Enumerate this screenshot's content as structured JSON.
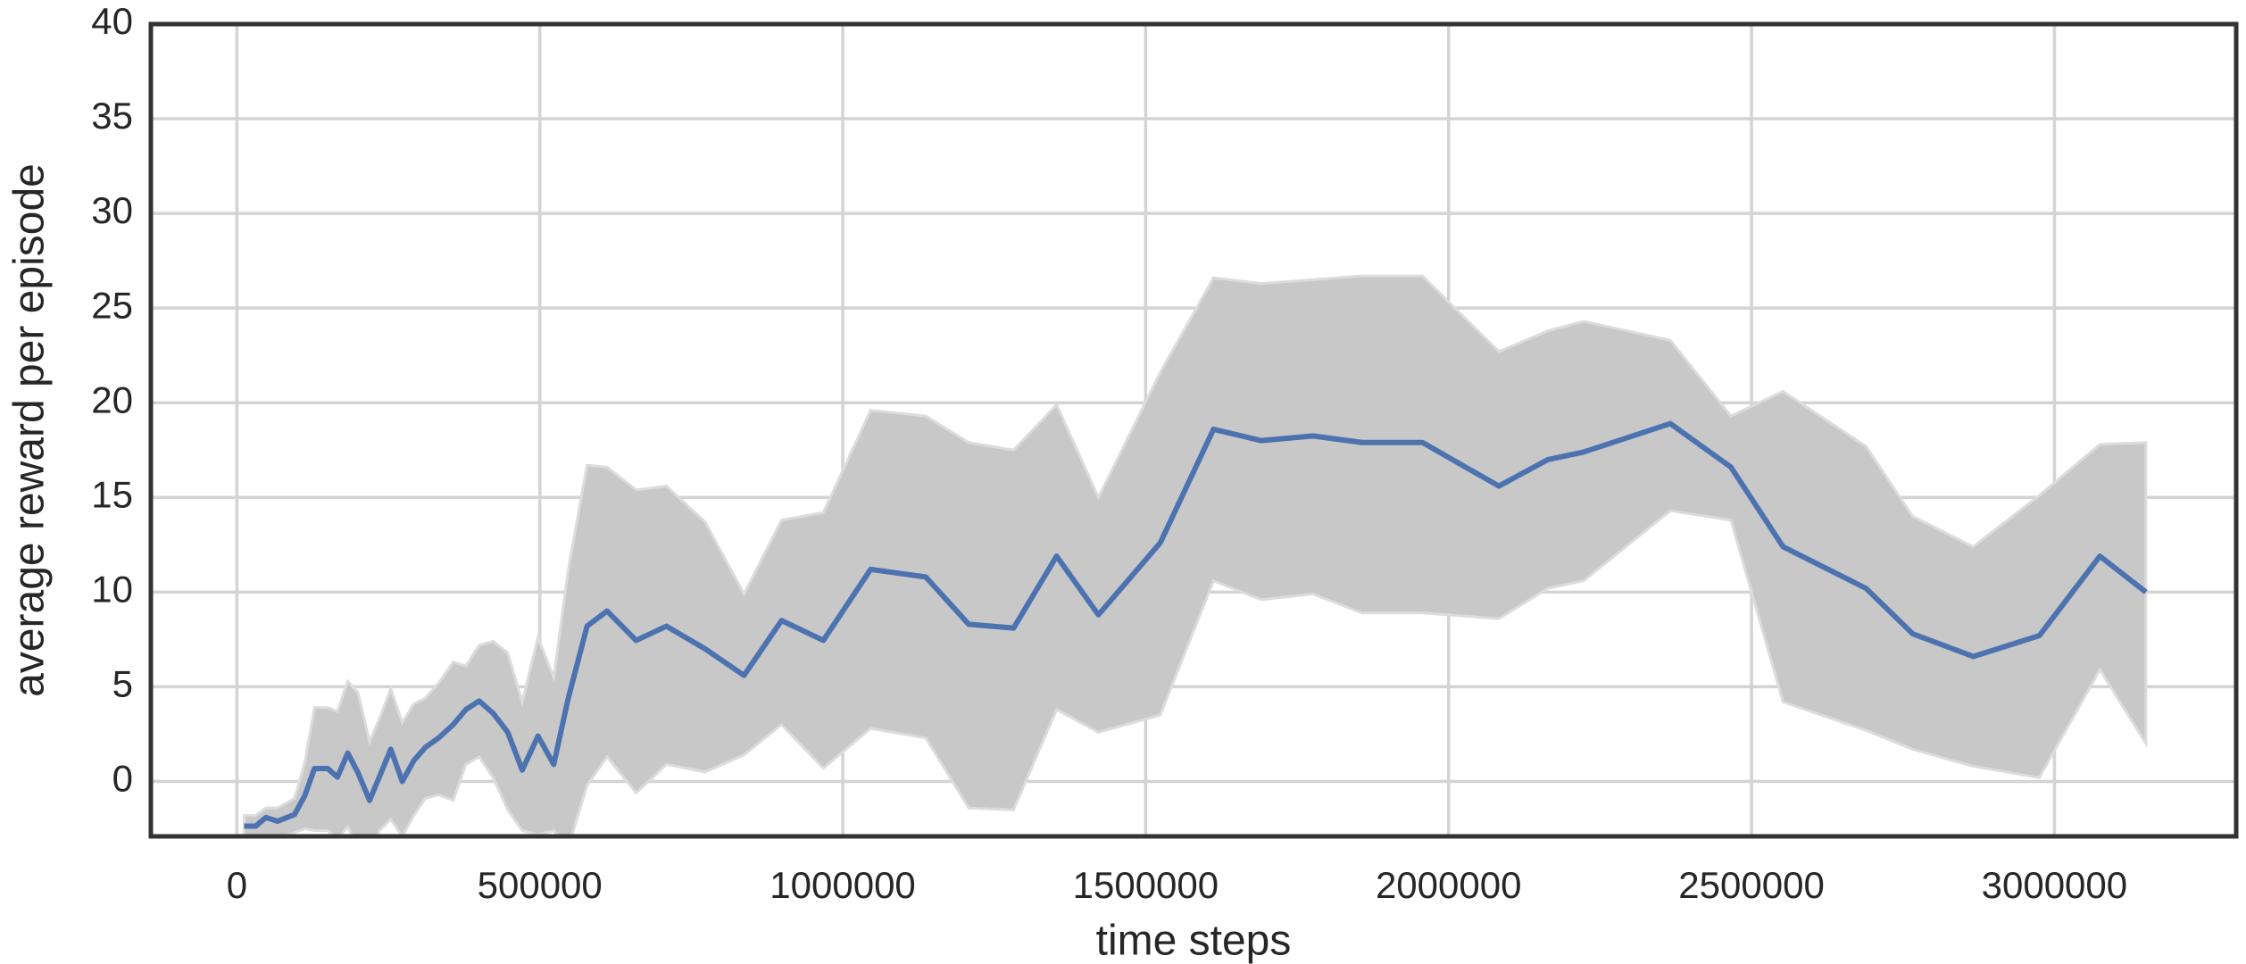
{
  "chart_data": {
    "type": "line",
    "xlabel": "time steps",
    "ylabel": "average reward per episode",
    "x": [
      12000,
      31000,
      48000,
      67000,
      95000,
      112000,
      128000,
      150000,
      166000,
      183000,
      200000,
      219000,
      235000,
      254000,
      273000,
      292000,
      311000,
      333000,
      357000,
      378000,
      400000,
      423000,
      447000,
      471000,
      497000,
      523000,
      547000,
      578000,
      611000,
      659000,
      709000,
      773000,
      837000,
      899000,
      968000,
      1046000,
      1137000,
      1208000,
      1282000,
      1353000,
      1422000,
      1524000,
      1612000,
      1691000,
      1776000,
      1857000,
      1957000,
      2083000,
      2164000,
      2223000,
      2366000,
      2466000,
      2552000,
      2689000,
      2766000,
      2866000,
      2975000,
      3075000,
      3151000
    ],
    "series": [
      {
        "color": "#4c72b0",
        "values": [
          -2.36,
          -2.36,
          -1.9,
          -2.1,
          -1.75,
          -0.76,
          0.68,
          0.68,
          0.23,
          1.5,
          0.45,
          -1.0,
          0.23,
          1.7,
          0,
          1.1,
          1.8,
          2.3,
          3.0,
          3.8,
          4.25,
          3.6,
          2.6,
          0.6,
          2.4,
          0.9,
          4.4,
          8.2,
          9.0,
          7.45,
          8.2,
          7.0,
          5.6,
          8.5,
          7.45,
          11.2,
          10.8,
          8.3,
          8.1,
          11.9,
          8.8,
          12.6,
          18.6,
          18.0,
          18.25,
          17.9,
          17.9,
          15.6,
          17.0,
          17.4,
          18.9,
          16.6,
          12.4,
          10.2,
          7.8,
          6.6,
          7.7,
          11.9,
          10.0
        ]
      }
    ],
    "band_color": "#c8c8c8",
    "band_upper": [
      -1.8,
      -1.8,
      -1.4,
      -1.4,
      -0.9,
      1.0,
      3.9,
      3.9,
      3.7,
      5.3,
      4.7,
      2.1,
      3.3,
      4.9,
      3.1,
      4.1,
      4.4,
      5.2,
      6.3,
      6.1,
      7.2,
      7.4,
      6.8,
      4.2,
      7.6,
      5.5,
      11.2,
      16.7,
      16.6,
      15.4,
      15.6,
      13.7,
      9.9,
      13.8,
      14.2,
      19.6,
      19.3,
      17.9,
      17.5,
      19.9,
      15.0,
      21.6,
      26.6,
      26.3,
      26.5,
      26.7,
      26.7,
      22.7,
      23.8,
      24.3,
      23.3,
      19.3,
      20.6,
      17.7,
      14.0,
      12.4,
      15.1,
      17.8,
      17.9
    ],
    "band_lower": [
      -3.2,
      -3.2,
      -2.9,
      -3.0,
      -2.7,
      -2.5,
      -2.6,
      -2.6,
      -3.0,
      -2.4,
      -3.5,
      -4.0,
      -2.6,
      -2.0,
      -2.9,
      -1.8,
      -0.9,
      -0.7,
      -1.0,
      0.9,
      1.3,
      0.2,
      -1.5,
      -2.6,
      -2.8,
      -2.6,
      -3.5,
      -0.2,
      1.3,
      -0.6,
      0.9,
      0.5,
      1.4,
      3.0,
      0.7,
      2.8,
      2.3,
      -1.4,
      -1.5,
      3.8,
      2.6,
      3.5,
      10.6,
      9.6,
      9.9,
      8.9,
      8.9,
      8.6,
      10.2,
      10.6,
      14.3,
      13.8,
      4.2,
      2.7,
      1.7,
      0.8,
      0.2,
      5.9,
      2.0
    ],
    "xlim": [
      -142000,
      3300000
    ],
    "ylim": [
      -2.9,
      40
    ],
    "xticks": [
      0,
      500000,
      1000000,
      1500000,
      2000000,
      2500000,
      3000000
    ],
    "yticks": [
      0,
      5,
      10,
      15,
      20,
      25,
      30,
      35,
      40
    ],
    "grid": true
  }
}
